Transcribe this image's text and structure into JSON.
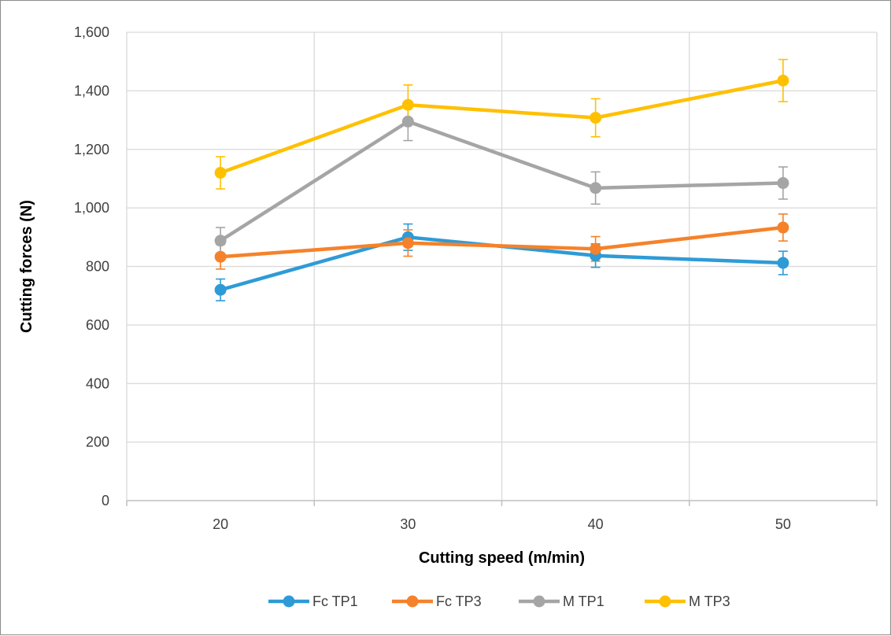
{
  "chart_data": {
    "type": "line",
    "title": "",
    "xlabel": "Cutting speed (m/min)",
    "ylabel": "Cutting forces (N)",
    "categories": [
      "20",
      "30",
      "40",
      "50"
    ],
    "ylim": [
      0,
      1600
    ],
    "y_ticks": [
      {
        "value": 0,
        "label": "0"
      },
      {
        "value": 200,
        "label": "200"
      },
      {
        "value": 400,
        "label": "400"
      },
      {
        "value": 600,
        "label": "600"
      },
      {
        "value": 800,
        "label": "800"
      },
      {
        "value": 1000,
        "label": "1,000"
      },
      {
        "value": 1200,
        "label": "1,200"
      },
      {
        "value": 1400,
        "label": "1,400"
      },
      {
        "value": 1600,
        "label": "1,600"
      }
    ],
    "grid": true,
    "legend_position": "bottom",
    "error_bars": true,
    "series": [
      {
        "name": "Fc TP1",
        "color": "#2e9bd6",
        "values": [
          720,
          900,
          837,
          812
        ],
        "errors": [
          37,
          45,
          40,
          40
        ]
      },
      {
        "name": "Fc TP3",
        "color": "#f5822b",
        "values": [
          833,
          880,
          860,
          933
        ],
        "errors": [
          42,
          45,
          42,
          46
        ]
      },
      {
        "name": "M TP1",
        "color": "#a5a5a5",
        "values": [
          888,
          1295,
          1068,
          1085
        ],
        "errors": [
          45,
          65,
          55,
          55
        ]
      },
      {
        "name": "M TP3",
        "color": "#ffc000",
        "values": [
          1120,
          1352,
          1308,
          1435
        ],
        "errors": [
          55,
          68,
          65,
          72
        ]
      }
    ]
  }
}
